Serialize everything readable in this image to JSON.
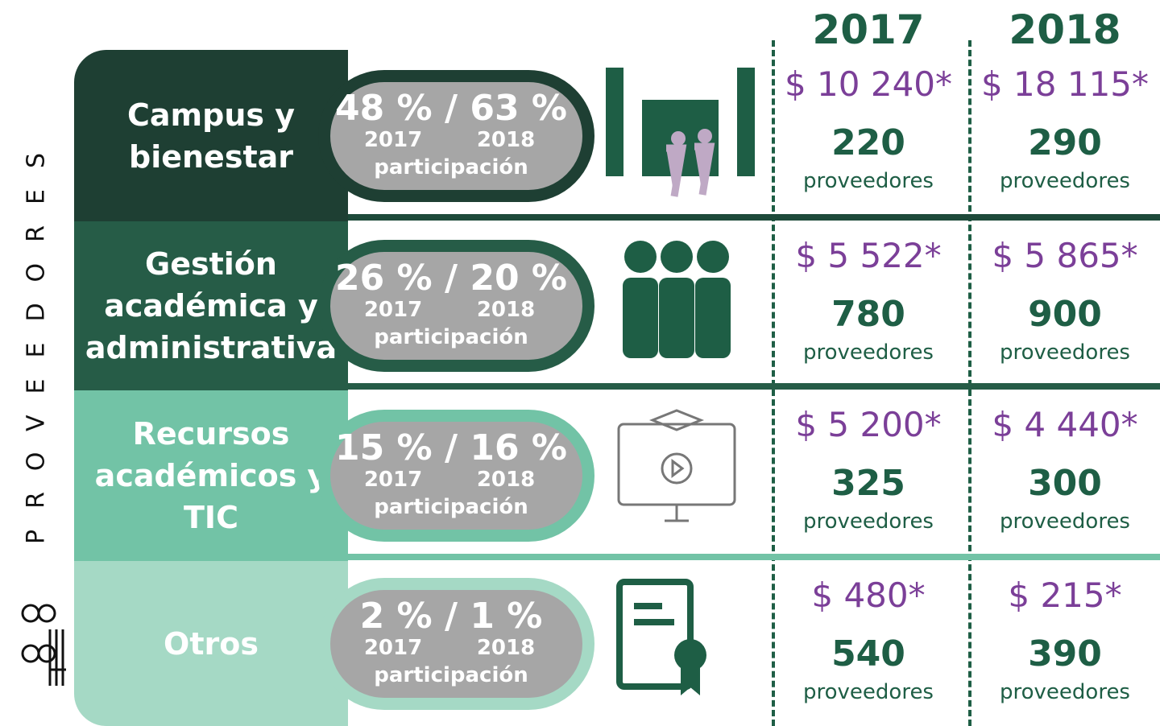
{
  "side_label": "PROVEEDORES",
  "years": [
    "2017",
    "2018"
  ],
  "rows": [
    {
      "label": "Campus y bienestar",
      "share": "48 % / 63 %",
      "share_years": [
        "2017",
        "2018"
      ],
      "share_caption": "participación",
      "amounts": [
        "$ 10 240*",
        "$ 18 115*"
      ],
      "counts": [
        "220",
        "290"
      ],
      "count_unit": "proveedores"
    },
    {
      "label": "Gestión académica y administrativa",
      "share": "26 % / 20 %",
      "share_years": [
        "2017",
        "2018"
      ],
      "share_caption": "participación",
      "amounts": [
        "$ 5 522*",
        "$ 5 865*"
      ],
      "counts": [
        "780",
        "900"
      ],
      "count_unit": "proveedores"
    },
    {
      "label": "Recursos académicos y TIC",
      "share": "15 % / 16 %",
      "share_years": [
        "2017",
        "2018"
      ],
      "share_caption": "participación",
      "amounts": [
        "$ 5 200*",
        "$ 4 440*"
      ],
      "counts": [
        "325",
        "300"
      ],
      "count_unit": "proveedores"
    },
    {
      "label": "Otros",
      "share": "2 % / 1 %",
      "share_years": [
        "2017",
        "2018"
      ],
      "share_caption": "participación",
      "amounts": [
        "$ 480*",
        "$ 215*"
      ],
      "counts": [
        "540",
        "390"
      ],
      "count_unit": "proveedores"
    }
  ]
}
